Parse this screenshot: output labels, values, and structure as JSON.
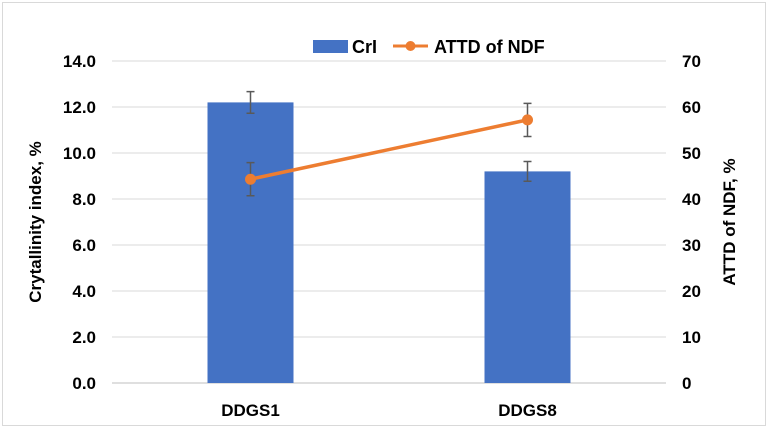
{
  "chart_data": {
    "type": "bar+line",
    "categories": [
      "DDGS1",
      "DDGS8"
    ],
    "series": [
      {
        "name": "CrI",
        "type": "bar",
        "axis": "left",
        "color": "#4472C4",
        "values": [
          12.2,
          9.2
        ],
        "error": [
          0.47,
          0.43
        ]
      },
      {
        "name": "ATTD of NDF",
        "type": "line",
        "axis": "right",
        "color": "#ED7D31",
        "values": [
          44.3,
          57.2
        ],
        "error": [
          3.6,
          3.6
        ]
      }
    ],
    "ylabel": "Crytallinity index, %",
    "y2label": "ATTD of NDF, %",
    "ylim": [
      0,
      14
    ],
    "y2lim": [
      0,
      70
    ],
    "yticks": [
      "0.0",
      "2.0",
      "4.0",
      "6.0",
      "8.0",
      "10.0",
      "12.0",
      "14.0"
    ],
    "y2ticks": [
      "0",
      "10",
      "20",
      "30",
      "40",
      "50",
      "60",
      "70"
    ],
    "grid": true,
    "legend": "top"
  }
}
